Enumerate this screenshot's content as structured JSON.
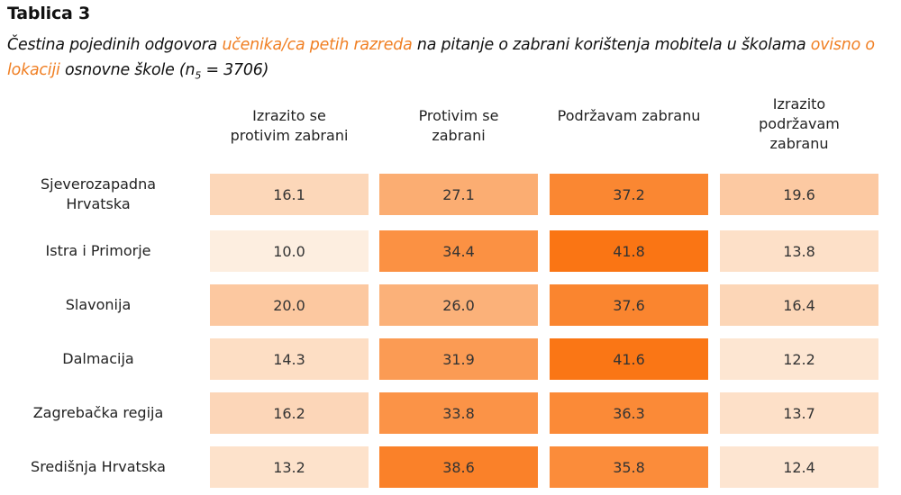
{
  "table_label": "Tablica 3",
  "caption": {
    "p1": "Čestina pojedinih odgovora ",
    "h1": "učenika/ca petih razreda",
    "p2": " na pitanje o zabrani korištenja mobitela u školama ",
    "h2": "ovisno o lokaciji",
    "p3": " osnovne škole (n",
    "sub": "5",
    "p4": " = 3706)"
  },
  "colors": {
    "accent": "#f07f23",
    "low": "#fdeee0",
    "high": "#fa7514"
  },
  "chart_data": {
    "type": "heatmap",
    "columns": [
      "Izrazito se protivim zabrani",
      "Protivim se zabrani",
      "Podržavam zabranu",
      "Izrazito podržavam zabranu"
    ],
    "rows": [
      "Sjeverozapadna Hrvatska",
      "Istra i Primorje",
      "Slavonija",
      "Dalmacija",
      "Zagrebačka regija",
      "Središnja Hrvatska"
    ],
    "values": [
      [
        "16.1",
        "27.1",
        "37.2",
        "19.6"
      ],
      [
        "10.0",
        "34.4",
        "41.8",
        "13.8"
      ],
      [
        "20.0",
        "26.0",
        "37.6",
        "16.4"
      ],
      [
        "14.3",
        "31.9",
        "41.6",
        "12.2"
      ],
      [
        "16.2",
        "33.8",
        "36.3",
        "13.7"
      ],
      [
        "13.2",
        "38.6",
        "35.8",
        "12.4"
      ]
    ],
    "value_range": [
      10.0,
      41.8
    ]
  }
}
